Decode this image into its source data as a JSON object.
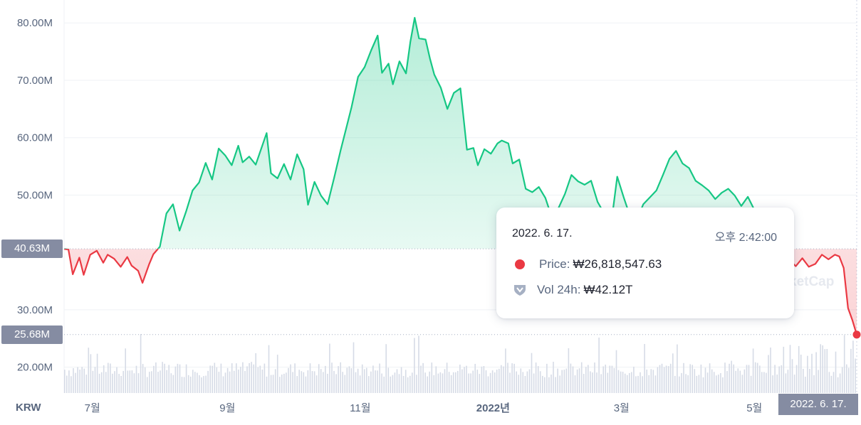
{
  "chart_data": {
    "type": "line",
    "currency_label": "KRW",
    "y_ticks": [
      "80.00M",
      "70.00M",
      "60.00M",
      "50.00M",
      "30.00M",
      "20.00M"
    ],
    "y_tick_values": [
      80000000,
      70000000,
      60000000,
      50000000,
      30000000,
      20000000
    ],
    "ylim": [
      15500000,
      83000000
    ],
    "x_ticks": [
      "7월",
      "9월",
      "11월",
      "2022년",
      "3월",
      "5월"
    ],
    "x_tick_values": [
      "2021-07-01",
      "2021-09-01",
      "2021-11-01",
      "2022-01-01",
      "2022-03-01",
      "2022-05-01"
    ],
    "xlim": [
      "2021-06-18",
      "2022-06-17"
    ],
    "reference_price": {
      "label": "40.63M",
      "value": 40630000
    },
    "current_price": {
      "label": "25.68M",
      "value": 25680000
    },
    "current_date_label": "2022. 6. 17.",
    "series": [
      {
        "values": [
          [
            "2021-06-18",
            40600000
          ],
          [
            "2021-06-20",
            40500000
          ],
          [
            "2021-06-22",
            36200000
          ],
          [
            "2021-06-25",
            39100000
          ],
          [
            "2021-06-27",
            36100000
          ],
          [
            "2021-06-30",
            39600000
          ],
          [
            "2021-07-03",
            40300000
          ],
          [
            "2021-07-06",
            38200000
          ],
          [
            "2021-07-08",
            39600000
          ],
          [
            "2021-07-11",
            38900000
          ],
          [
            "2021-07-14",
            37500000
          ],
          [
            "2021-07-17",
            39200000
          ],
          [
            "2021-07-19",
            37700000
          ],
          [
            "2021-07-22",
            36800000
          ],
          [
            "2021-07-24",
            34700000
          ],
          [
            "2021-07-27",
            37900000
          ],
          [
            "2021-07-29",
            39700000
          ],
          [
            "2021-08-01",
            41000000
          ],
          [
            "2021-08-04",
            46800000
          ],
          [
            "2021-08-07",
            48400000
          ],
          [
            "2021-08-10",
            43800000
          ],
          [
            "2021-08-13",
            47100000
          ],
          [
            "2021-08-16",
            50800000
          ],
          [
            "2021-08-19",
            52200000
          ],
          [
            "2021-08-22",
            55600000
          ],
          [
            "2021-08-25",
            52700000
          ],
          [
            "2021-08-28",
            58100000
          ],
          [
            "2021-08-31",
            56900000
          ],
          [
            "2021-09-03",
            55200000
          ],
          [
            "2021-09-06",
            58600000
          ],
          [
            "2021-09-08",
            55700000
          ],
          [
            "2021-09-11",
            56700000
          ],
          [
            "2021-09-14",
            55300000
          ],
          [
            "2021-09-16",
            57500000
          ],
          [
            "2021-09-19",
            60800000
          ],
          [
            "2021-09-21",
            53800000
          ],
          [
            "2021-09-24",
            52900000
          ],
          [
            "2021-09-27",
            55400000
          ],
          [
            "2021-09-30",
            52700000
          ],
          [
            "2021-10-03",
            57100000
          ],
          [
            "2021-10-06",
            54500000
          ],
          [
            "2021-10-08",
            48300000
          ],
          [
            "2021-10-11",
            52300000
          ],
          [
            "2021-10-14",
            49900000
          ],
          [
            "2021-10-17",
            48400000
          ],
          [
            "2021-10-20",
            53000000
          ],
          [
            "2021-10-23",
            57800000
          ],
          [
            "2021-10-26",
            62300000
          ],
          [
            "2021-10-28",
            65300000
          ],
          [
            "2021-10-31",
            70600000
          ],
          [
            "2021-11-03",
            72300000
          ],
          [
            "2021-11-06",
            75200000
          ],
          [
            "2021-11-09",
            77800000
          ],
          [
            "2021-11-11",
            71300000
          ],
          [
            "2021-11-14",
            72900000
          ],
          [
            "2021-11-16",
            69300000
          ],
          [
            "2021-11-19",
            73300000
          ],
          [
            "2021-11-22",
            71200000
          ],
          [
            "2021-11-24",
            76700000
          ],
          [
            "2021-11-26",
            80900000
          ],
          [
            "2021-11-28",
            77300000
          ],
          [
            "2021-12-01",
            77100000
          ],
          [
            "2021-12-03",
            73800000
          ],
          [
            "2021-12-05",
            71000000
          ],
          [
            "2021-12-08",
            68700000
          ],
          [
            "2021-12-11",
            65000000
          ],
          [
            "2021-12-14",
            67800000
          ],
          [
            "2021-12-17",
            68600000
          ],
          [
            "2021-12-20",
            57900000
          ],
          [
            "2021-12-23",
            58200000
          ],
          [
            "2021-12-25",
            55200000
          ],
          [
            "2021-12-28",
            58000000
          ],
          [
            "2021-12-31",
            57200000
          ],
          [
            "2022-01-03",
            59000000
          ],
          [
            "2022-01-05",
            59500000
          ],
          [
            "2022-01-08",
            59000000
          ],
          [
            "2022-01-10",
            55500000
          ],
          [
            "2022-01-13",
            56200000
          ],
          [
            "2022-01-16",
            51100000
          ],
          [
            "2022-01-19",
            50500000
          ],
          [
            "2022-01-22",
            51400000
          ],
          [
            "2022-01-25",
            49500000
          ],
          [
            "2022-01-28",
            46100000
          ],
          [
            "2022-01-31",
            47700000
          ],
          [
            "2022-02-03",
            50200000
          ],
          [
            "2022-02-06",
            53500000
          ],
          [
            "2022-02-09",
            52400000
          ],
          [
            "2022-02-12",
            51800000
          ],
          [
            "2022-02-15",
            52500000
          ],
          [
            "2022-02-18",
            48800000
          ],
          [
            "2022-02-21",
            46800000
          ],
          [
            "2022-02-24",
            44300000
          ],
          [
            "2022-02-27",
            53200000
          ],
          [
            "2022-03-02",
            49600000
          ],
          [
            "2022-03-05",
            46200000
          ],
          [
            "2022-03-08",
            45700000
          ],
          [
            "2022-03-11",
            48400000
          ],
          [
            "2022-03-14",
            49600000
          ],
          [
            "2022-03-17",
            50800000
          ],
          [
            "2022-03-20",
            53500000
          ],
          [
            "2022-03-23",
            56300000
          ],
          [
            "2022-03-26",
            57700000
          ],
          [
            "2022-03-29",
            55500000
          ],
          [
            "2022-04-01",
            54700000
          ],
          [
            "2022-04-04",
            52500000
          ],
          [
            "2022-04-07",
            51700000
          ],
          [
            "2022-04-10",
            50800000
          ],
          [
            "2022-04-13",
            49300000
          ],
          [
            "2022-04-16",
            50400000
          ],
          [
            "2022-04-19",
            51100000
          ],
          [
            "2022-04-22",
            49900000
          ],
          [
            "2022-04-25",
            48100000
          ],
          [
            "2022-04-28",
            49700000
          ],
          [
            "2022-05-01",
            47400000
          ],
          [
            "2022-05-04",
            46000000
          ],
          [
            "2022-05-06",
            43600000
          ],
          [
            "2022-05-08",
            41700000
          ],
          [
            "2022-05-11",
            37100000
          ],
          [
            "2022-05-14",
            38000000
          ],
          [
            "2022-05-17",
            38700000
          ],
          [
            "2022-05-20",
            37600000
          ],
          [
            "2022-05-23",
            39000000
          ],
          [
            "2022-05-26",
            37500000
          ],
          [
            "2022-05-29",
            38000000
          ],
          [
            "2022-06-01",
            39600000
          ],
          [
            "2022-06-04",
            38800000
          ],
          [
            "2022-06-07",
            39600000
          ],
          [
            "2022-06-09",
            39300000
          ],
          [
            "2022-06-11",
            37300000
          ],
          [
            "2022-06-13",
            30300000
          ],
          [
            "2022-06-15",
            28200000
          ],
          [
            "2022-06-17",
            25680000
          ]
        ]
      }
    ],
    "volume_bars_visible": true,
    "grid": true
  },
  "tooltip": {
    "date": "2022. 6. 17.",
    "time": "오후 2:42:00",
    "price_label": "Price:",
    "price_value": "₩26,818,547.63",
    "volume_label": "Vol 24h:",
    "volume_value": "₩42.12T"
  },
  "watermark": "ketCap",
  "colors": {
    "up": "#16c784",
    "down": "#ea3943",
    "grid": "#eff2f5",
    "axis_text": "#58667e",
    "badge_bg": "#858ca2",
    "volume": "#d6dbe6"
  }
}
